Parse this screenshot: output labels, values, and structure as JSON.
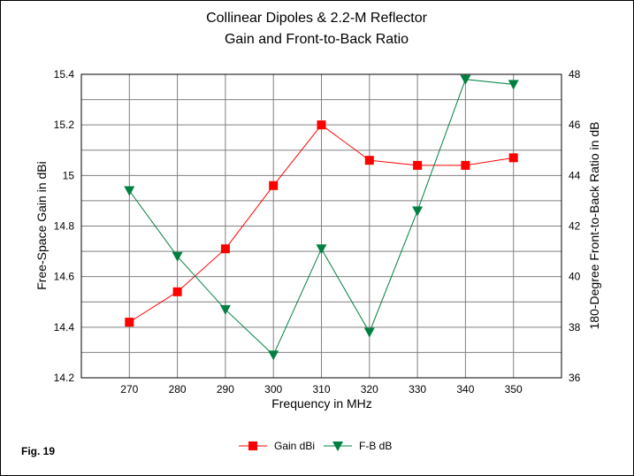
{
  "chart_data": {
    "type": "line",
    "title_line1": "Collinear Dipoles & 2.2-M Reflector",
    "title_line2": "Gain and Front-to-Back Ratio",
    "xlabel": "Frequency in MHz",
    "ylabel_left": "Free-Space Gain in dBi",
    "ylabel_right": "180-Degree Front-to-Back Ratio in dB",
    "x": [
      270,
      280,
      290,
      300,
      310,
      320,
      330,
      340,
      350
    ],
    "x_tick_labels": [
      "270",
      "280",
      "290",
      "300",
      "310",
      "320",
      "330",
      "340",
      "350"
    ],
    "xlim": [
      260,
      360
    ],
    "ylim_left": [
      14.2,
      15.4
    ],
    "y_left_ticks": [
      14.2,
      14.4,
      14.6,
      14.8,
      15,
      15.2,
      15.4
    ],
    "y_left_tick_labels": [
      "14.2",
      "14.4",
      "14.6",
      "14.8",
      "15",
      "15.2",
      "15.4"
    ],
    "ylim_right": [
      36,
      48
    ],
    "y_right_ticks": [
      36,
      38,
      40,
      42,
      44,
      46,
      48
    ],
    "y_right_tick_labels": [
      "36",
      "38",
      "40",
      "42",
      "44",
      "46",
      "48"
    ],
    "grid": true,
    "legend_position": "bottom-center",
    "series": [
      {
        "name": "Gain dBi",
        "axis": "left",
        "color": "#ff0000",
        "marker": "square",
        "values": [
          14.42,
          14.54,
          14.71,
          14.96,
          15.2,
          15.06,
          15.04,
          15.04,
          15.07
        ]
      },
      {
        "name": "F-B dB",
        "axis": "right",
        "color": "#008040",
        "marker": "triangle-down",
        "values": [
          43.4,
          40.8,
          38.7,
          36.9,
          41.1,
          37.8,
          42.6,
          47.8,
          47.6
        ]
      }
    ]
  },
  "figure_label": "Fig. 19"
}
